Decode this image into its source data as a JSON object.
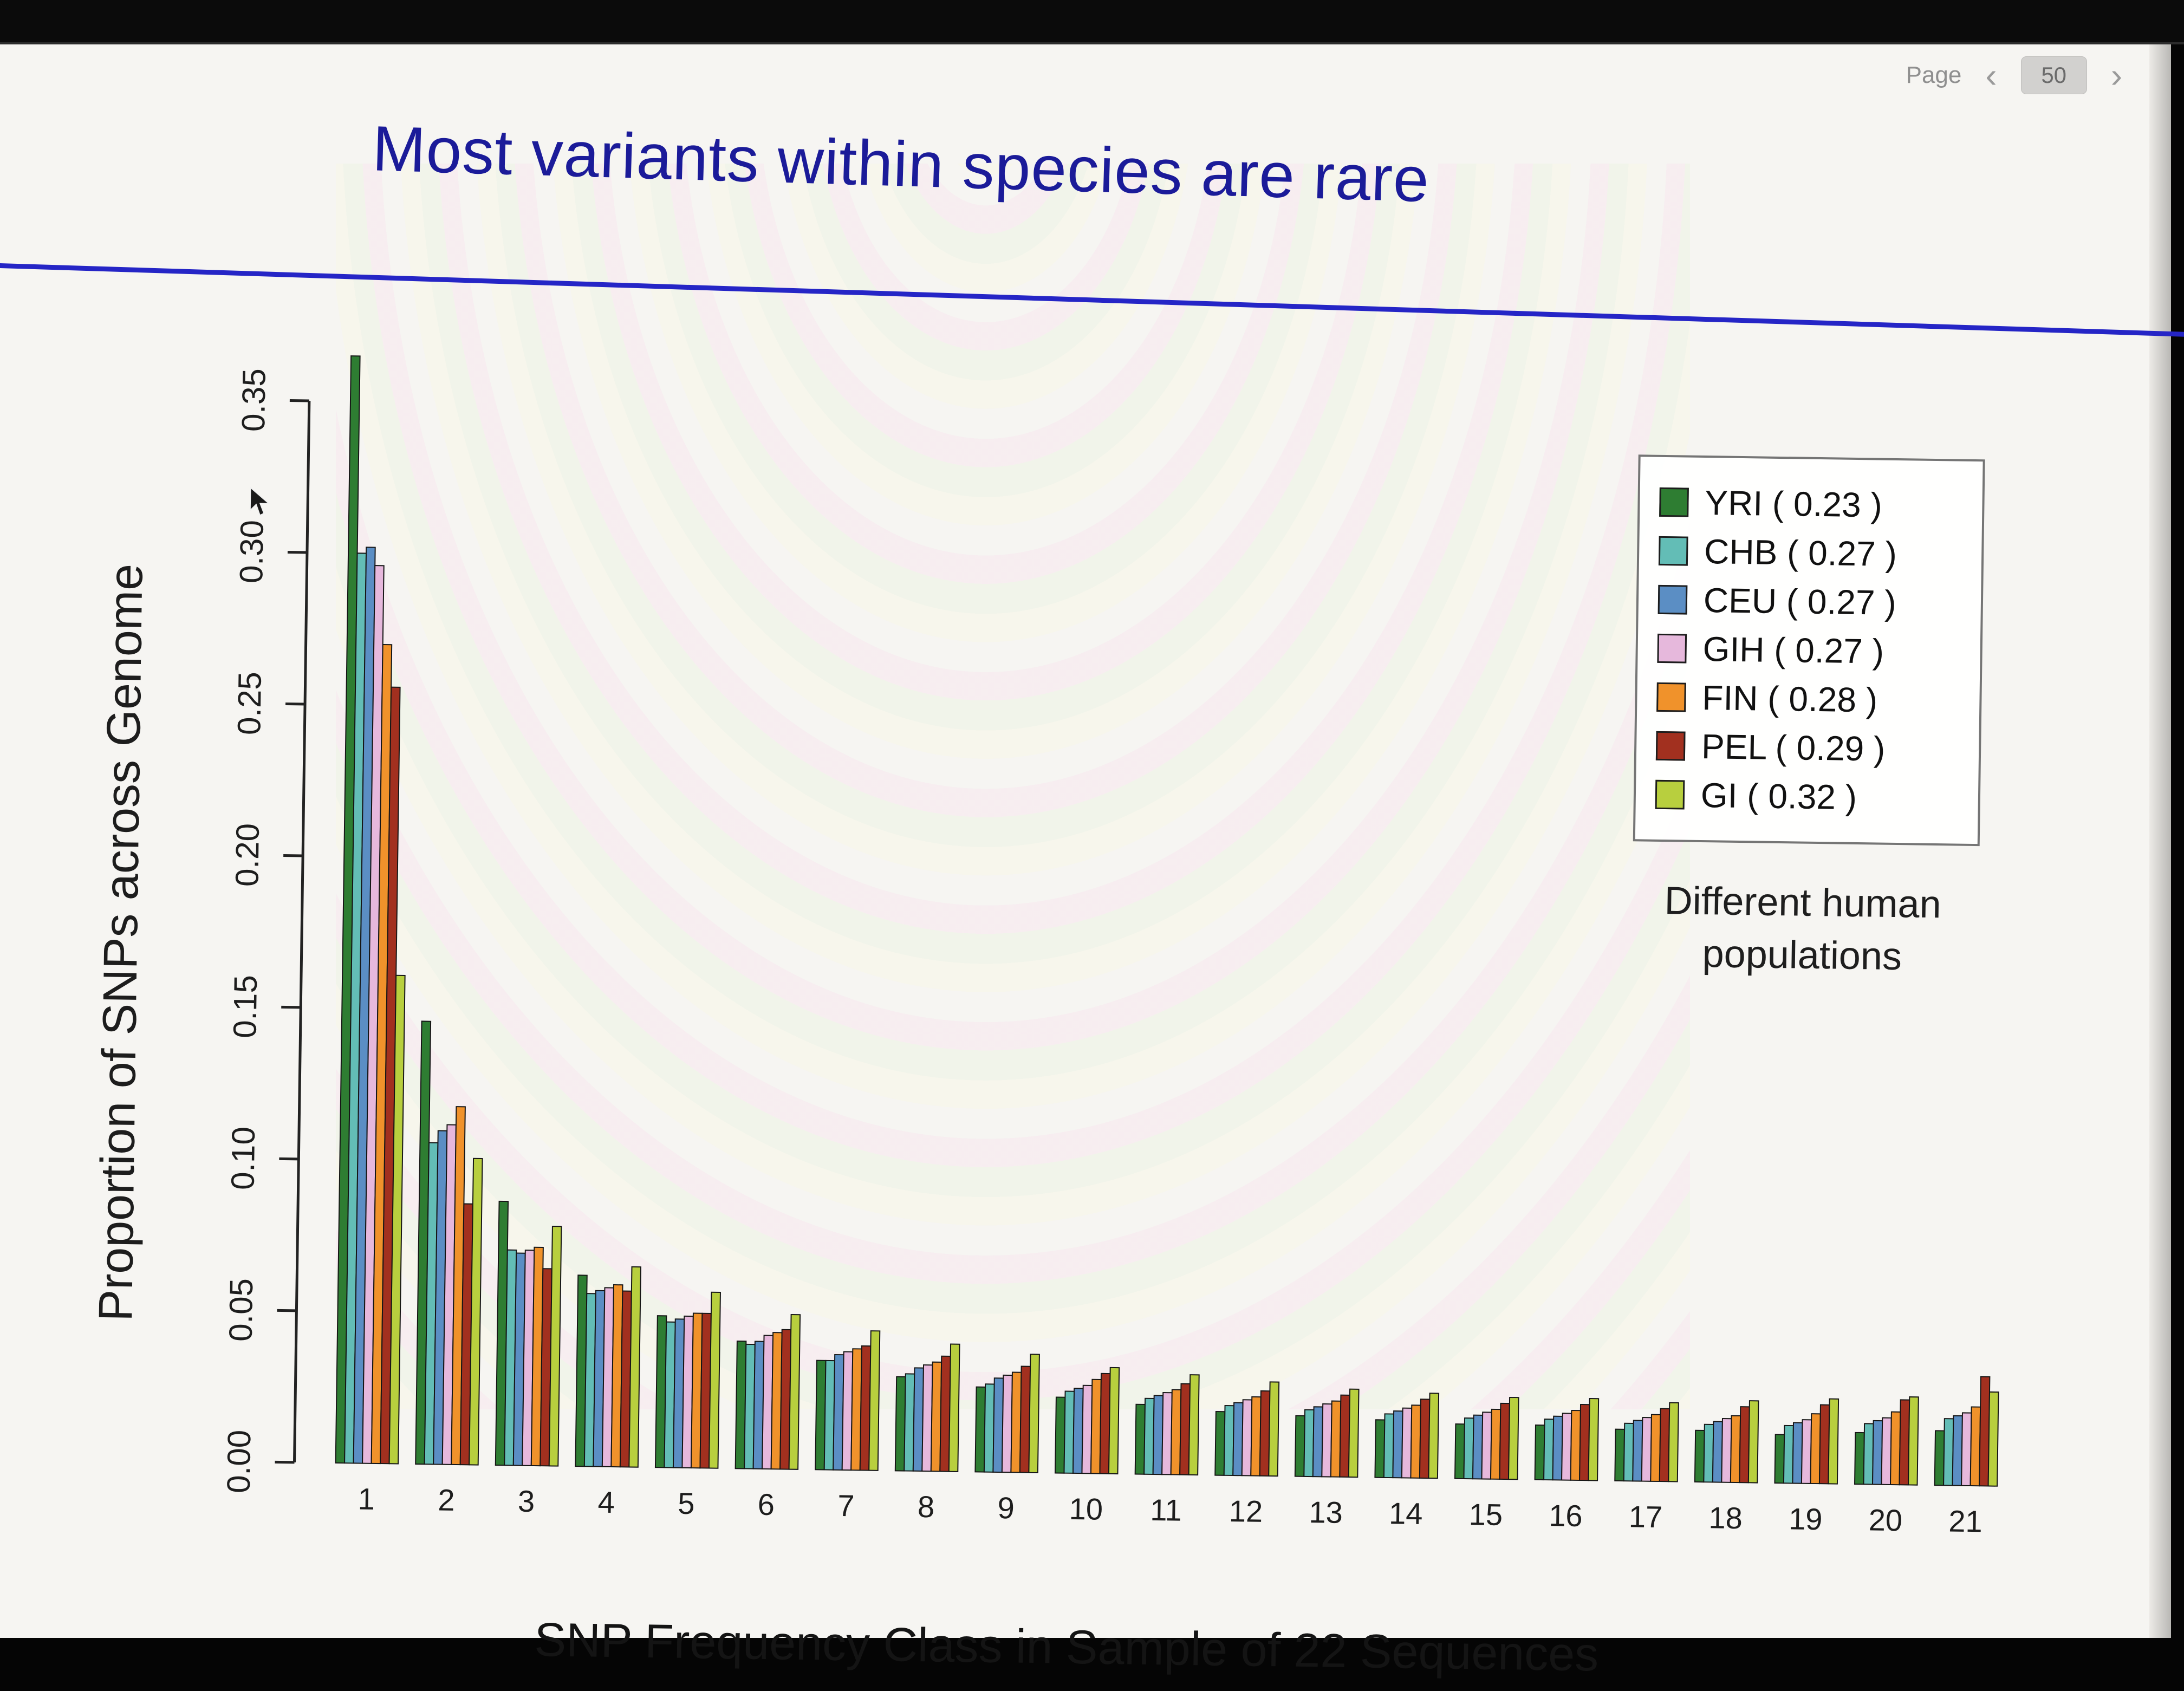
{
  "viewer": {
    "page_label": "Page",
    "page_number": "50",
    "prev_glyph": "‹",
    "next_glyph": "›",
    "icons": {
      "prev": "chevron-left-icon",
      "next": "chevron-right-icon"
    }
  },
  "slide": {
    "title": "Most variants within species are rare",
    "title_color": "#1b1b99",
    "rule_color": "#2525c6",
    "note_line1": "Different human",
    "note_line2": "populations"
  },
  "chart_data": {
    "type": "bar",
    "title": "",
    "xlabel": "SNP Frequency Class in Sample of 22 Sequences",
    "ylabel": "Proportion of SNPs across Genome",
    "ylim": [
      0,
      0.35
    ],
    "grid": false,
    "legend_position": "top-right",
    "y_tick_labels": [
      "0.00",
      "0.05",
      "0.10",
      "0.15",
      "0.20",
      "0.25",
      "0.30",
      "0.35"
    ],
    "categories": [
      "1",
      "2",
      "3",
      "4",
      "5",
      "6",
      "7",
      "8",
      "9",
      "10",
      "11",
      "12",
      "13",
      "14",
      "15",
      "16",
      "17",
      "18",
      "19",
      "20",
      "21"
    ],
    "series": [
      {
        "name": "YRI",
        "legend_label": "YRI ( 0.23 )",
        "color": "#2e7d32",
        "values": [
          0.365,
          0.146,
          0.087,
          0.063,
          0.05,
          0.042,
          0.036,
          0.031,
          0.028,
          0.025,
          0.023,
          0.021,
          0.02,
          0.019,
          0.018,
          0.018,
          0.017,
          0.017,
          0.016,
          0.017,
          0.018
        ]
      },
      {
        "name": "CHB",
        "legend_label": "CHB ( 0.27 )",
        "color": "#63bdb6",
        "values": [
          0.3,
          0.106,
          0.071,
          0.057,
          0.048,
          0.041,
          0.036,
          0.032,
          0.029,
          0.027,
          0.025,
          0.023,
          0.022,
          0.021,
          0.02,
          0.02,
          0.019,
          0.019,
          0.019,
          0.02,
          0.022
        ]
      },
      {
        "name": "CEU",
        "legend_label": "CEU ( 0.27 )",
        "color": "#5b8ec4",
        "values": [
          0.302,
          0.11,
          0.07,
          0.058,
          0.049,
          0.042,
          0.038,
          0.034,
          0.031,
          0.028,
          0.026,
          0.024,
          0.023,
          0.022,
          0.021,
          0.021,
          0.02,
          0.02,
          0.02,
          0.021,
          0.023
        ]
      },
      {
        "name": "GIH",
        "legend_label": "GIH ( 0.27 )",
        "color": "#e6b8dc",
        "values": [
          0.296,
          0.112,
          0.071,
          0.059,
          0.05,
          0.044,
          0.039,
          0.035,
          0.032,
          0.029,
          0.027,
          0.025,
          0.024,
          0.023,
          0.022,
          0.022,
          0.021,
          0.021,
          0.021,
          0.022,
          0.024
        ]
      },
      {
        "name": "FIN",
        "legend_label": "FIN ( 0.28 )",
        "color": "#f0922b",
        "values": [
          0.27,
          0.118,
          0.072,
          0.06,
          0.051,
          0.045,
          0.04,
          0.036,
          0.033,
          0.031,
          0.028,
          0.026,
          0.025,
          0.024,
          0.023,
          0.023,
          0.022,
          0.022,
          0.023,
          0.024,
          0.026
        ]
      },
      {
        "name": "PEL",
        "legend_label": "PEL ( 0.29 )",
        "color": "#a2301f",
        "values": [
          0.256,
          0.086,
          0.065,
          0.058,
          0.051,
          0.046,
          0.041,
          0.038,
          0.035,
          0.033,
          0.03,
          0.028,
          0.027,
          0.026,
          0.025,
          0.025,
          0.024,
          0.025,
          0.026,
          0.028,
          0.036
        ]
      },
      {
        "name": "GI",
        "legend_label": "GI ( 0.32 )",
        "color": "#b8cf3e",
        "values": [
          0.161,
          0.101,
          0.079,
          0.066,
          0.058,
          0.051,
          0.046,
          0.042,
          0.039,
          0.035,
          0.033,
          0.031,
          0.029,
          0.028,
          0.027,
          0.027,
          0.026,
          0.027,
          0.028,
          0.029,
          0.031
        ]
      }
    ]
  }
}
